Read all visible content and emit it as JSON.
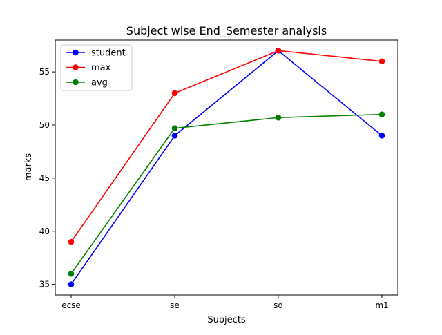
{
  "chart_data": {
    "type": "line",
    "title": "Subject wise End_Semester analysis",
    "xlabel": "Subjects",
    "ylabel": "marks",
    "categories": [
      "ecse",
      "se",
      "sd",
      "m1"
    ],
    "ylim": [
      34,
      58
    ],
    "yticks": [
      35,
      40,
      45,
      50,
      55
    ],
    "grid": false,
    "legend_position": "top-left",
    "series": [
      {
        "name": "student",
        "color": "#0000ff",
        "values": [
          35,
          49,
          57,
          49
        ]
      },
      {
        "name": "max",
        "color": "#ff0000",
        "values": [
          39,
          53,
          57,
          56
        ]
      },
      {
        "name": "avg",
        "color": "#008000",
        "values": [
          36,
          49.7,
          50.7,
          51
        ]
      }
    ]
  }
}
